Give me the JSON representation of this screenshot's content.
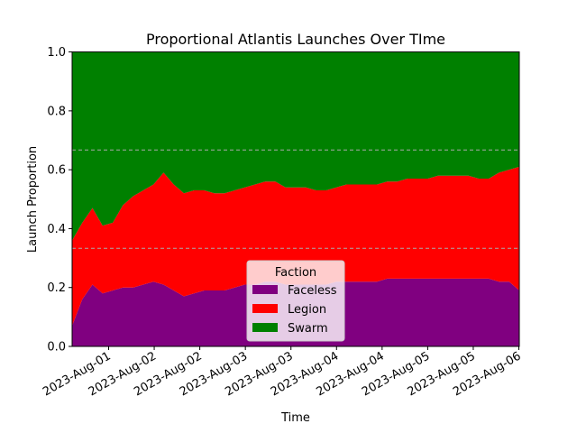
{
  "chart_data": {
    "type": "area",
    "stacked": true,
    "normalized": true,
    "title": "Proportional Atlantis Launches Over TIme",
    "xlabel": "Time",
    "ylabel": "Launch Proportion",
    "ylim": [
      0.0,
      1.0
    ],
    "yticks": [
      "0.0",
      "0.2",
      "0.4",
      "0.6",
      "0.8",
      "1.0"
    ],
    "xticks": [
      "2023-Aug-01",
      "2023-Aug-02",
      "2023-Aug-02",
      "2023-Aug-03",
      "2023-Aug-03",
      "2023-Aug-04",
      "2023-Aug-04",
      "2023-Aug-05",
      "2023-Aug-05",
      "2023-Aug-06"
    ],
    "reference_lines": [
      0.333,
      0.667
    ],
    "grid": false,
    "legend": {
      "title": "Faction",
      "position": "bottom-center"
    },
    "x": [
      "2023-07-31 12:00",
      "2023-07-31 15:00",
      "2023-07-31 18:00",
      "2023-07-31 21:00",
      "2023-08-01 00:00",
      "2023-08-01 03:00",
      "2023-08-01 06:00",
      "2023-08-01 09:00",
      "2023-08-01 12:00",
      "2023-08-01 15:00",
      "2023-08-01 18:00",
      "2023-08-01 21:00",
      "2023-08-02 00:00",
      "2023-08-02 03:00",
      "2023-08-02 06:00",
      "2023-08-02 09:00",
      "2023-08-02 12:00",
      "2023-08-02 15:00",
      "2023-08-02 18:00",
      "2023-08-02 21:00",
      "2023-08-03 00:00",
      "2023-08-03 03:00",
      "2023-08-03 06:00",
      "2023-08-03 09:00",
      "2023-08-03 12:00",
      "2023-08-03 15:00",
      "2023-08-03 18:00",
      "2023-08-03 21:00",
      "2023-08-04 00:00",
      "2023-08-04 03:00",
      "2023-08-04 06:00",
      "2023-08-04 09:00",
      "2023-08-04 12:00",
      "2023-08-04 15:00",
      "2023-08-04 18:00",
      "2023-08-04 21:00",
      "2023-08-05 00:00",
      "2023-08-05 03:00",
      "2023-08-05 06:00",
      "2023-08-05 09:00",
      "2023-08-05 12:00",
      "2023-08-05 15:00",
      "2023-08-05 18:00",
      "2023-08-05 21:00",
      "2023-08-06 00:00"
    ],
    "series": [
      {
        "name": "Faceless",
        "color": "#800080",
        "values": [
          0.07,
          0.16,
          0.21,
          0.18,
          0.19,
          0.2,
          0.2,
          0.21,
          0.22,
          0.21,
          0.19,
          0.17,
          0.18,
          0.19,
          0.19,
          0.19,
          0.2,
          0.21,
          0.21,
          0.22,
          0.22,
          0.21,
          0.21,
          0.21,
          0.21,
          0.21,
          0.22,
          0.22,
          0.22,
          0.22,
          0.22,
          0.23,
          0.23,
          0.23,
          0.23,
          0.23,
          0.23,
          0.23,
          0.23,
          0.23,
          0.23,
          0.23,
          0.22,
          0.22,
          0.19
        ]
      },
      {
        "name": "Legion",
        "color": "#ff0000",
        "values": [
          0.29,
          0.26,
          0.26,
          0.23,
          0.23,
          0.28,
          0.31,
          0.32,
          0.33,
          0.38,
          0.36,
          0.35,
          0.35,
          0.34,
          0.33,
          0.33,
          0.33,
          0.33,
          0.34,
          0.34,
          0.34,
          0.33,
          0.33,
          0.33,
          0.32,
          0.32,
          0.32,
          0.33,
          0.33,
          0.33,
          0.33,
          0.33,
          0.33,
          0.34,
          0.34,
          0.34,
          0.35,
          0.35,
          0.35,
          0.35,
          0.34,
          0.34,
          0.37,
          0.38,
          0.42
        ]
      },
      {
        "name": "Swarm",
        "color": "#008000",
        "values": [
          0.64,
          0.58,
          0.53,
          0.59,
          0.58,
          0.52,
          0.49,
          0.47,
          0.45,
          0.41,
          0.45,
          0.48,
          0.47,
          0.47,
          0.48,
          0.48,
          0.47,
          0.46,
          0.45,
          0.44,
          0.44,
          0.46,
          0.46,
          0.46,
          0.47,
          0.47,
          0.46,
          0.45,
          0.45,
          0.45,
          0.45,
          0.44,
          0.44,
          0.43,
          0.43,
          0.43,
          0.42,
          0.42,
          0.42,
          0.42,
          0.43,
          0.43,
          0.41,
          0.4,
          0.39
        ]
      }
    ]
  }
}
